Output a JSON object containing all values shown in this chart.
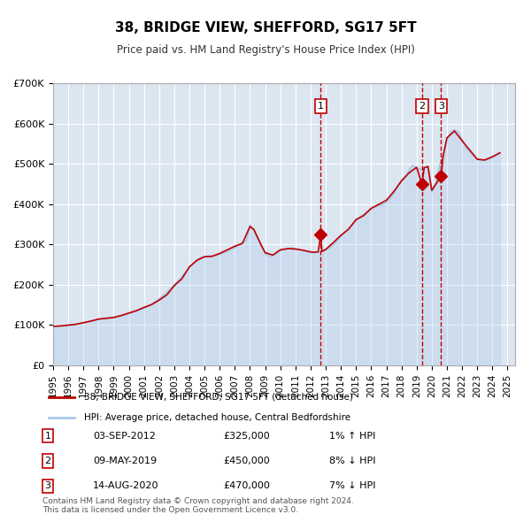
{
  "title": "38, BRIDGE VIEW, SHEFFORD, SG17 5FT",
  "subtitle": "Price paid vs. HM Land Registry's House Price Index (HPI)",
  "background_color": "#ffffff",
  "plot_bg_color": "#dce6f1",
  "grid_color": "#ffffff",
  "ylim": [
    0,
    700000
  ],
  "yticks": [
    0,
    100000,
    200000,
    300000,
    400000,
    500000,
    600000,
    700000
  ],
  "ytick_labels": [
    "£0",
    "£100K",
    "£200K",
    "£300K",
    "£400K",
    "£500K",
    "£600K",
    "£700K"
  ],
  "xlim_start": 1995.0,
  "xlim_end": 2025.5,
  "sale_color": "#c00000",
  "hpi_color": "#a8c8e8",
  "sale_label": "38, BRIDGE VIEW, SHEFFORD, SG17 5FT (detached house)",
  "hpi_label": "HPI: Average price, detached house, Central Bedfordshire",
  "transactions": [
    {
      "num": 1,
      "date": "03-SEP-2012",
      "price": 325000,
      "hpi_diff": "1% ↑ HPI",
      "year": 2012.67
    },
    {
      "num": 2,
      "date": "09-MAY-2019",
      "price": 450000,
      "hpi_diff": "8% ↓ HPI",
      "year": 2019.35
    },
    {
      "num": 3,
      "date": "14-AUG-2020",
      "price": 470000,
      "hpi_diff": "7% ↓ HPI",
      "year": 2020.62
    }
  ],
  "footnote": "Contains HM Land Registry data © Crown copyright and database right 2024.\nThis data is licensed under the Open Government Licence v3.0.",
  "hpi_data_x": [
    1995,
    1995.25,
    1995.5,
    1995.75,
    1996,
    1996.25,
    1996.5,
    1996.75,
    1997,
    1997.25,
    1997.5,
    1997.75,
    1998,
    1998.25,
    1998.5,
    1998.75,
    1999,
    1999.25,
    1999.5,
    1999.75,
    2000,
    2000.25,
    2000.5,
    2000.75,
    2001,
    2001.25,
    2001.5,
    2001.75,
    2002,
    2002.25,
    2002.5,
    2002.75,
    2003,
    2003.25,
    2003.5,
    2003.75,
    2004,
    2004.25,
    2004.5,
    2004.75,
    2005,
    2005.25,
    2005.5,
    2005.75,
    2006,
    2006.25,
    2006.5,
    2006.75,
    2007,
    2007.25,
    2007.5,
    2007.75,
    2008,
    2008.25,
    2008.5,
    2008.75,
    2009,
    2009.25,
    2009.5,
    2009.75,
    2010,
    2010.25,
    2010.5,
    2010.75,
    2011,
    2011.25,
    2011.5,
    2011.75,
    2012,
    2012.25,
    2012.5,
    2012.75,
    2013,
    2013.25,
    2013.5,
    2013.75,
    2014,
    2014.25,
    2014.5,
    2014.75,
    2015,
    2015.25,
    2015.5,
    2015.75,
    2016,
    2016.25,
    2016.5,
    2016.75,
    2017,
    2017.25,
    2017.5,
    2017.75,
    2018,
    2018.25,
    2018.5,
    2018.75,
    2019,
    2019.25,
    2019.5,
    2019.75,
    2020,
    2020.25,
    2020.5,
    2020.75,
    2021,
    2021.25,
    2021.5,
    2021.75,
    2022,
    2022.25,
    2022.5,
    2022.75,
    2023,
    2023.25,
    2023.5,
    2023.75,
    2024,
    2024.25,
    2024.5
  ],
  "hpi_data_y": [
    97000,
    97500,
    98000,
    99000,
    100000,
    101000,
    102500,
    104000,
    106000,
    108000,
    111000,
    113000,
    115000,
    116000,
    117000,
    118000,
    119000,
    121000,
    123000,
    126000,
    129000,
    132000,
    135000,
    138000,
    142000,
    147000,
    152000,
    158000,
    165000,
    173000,
    181000,
    191000,
    200000,
    210000,
    220000,
    232000,
    243000,
    253000,
    262000,
    268000,
    270000,
    271000,
    272000,
    273000,
    276000,
    280000,
    284000,
    289000,
    293000,
    299000,
    305000,
    310000,
    348000,
    335000,
    315000,
    295000,
    278000,
    271000,
    272000,
    278000,
    285000,
    288000,
    290000,
    292000,
    290000,
    288000,
    285000,
    283000,
    280000,
    281000,
    282000,
    283000,
    286000,
    292000,
    300000,
    310000,
    320000,
    330000,
    340000,
    350000,
    360000,
    368000,
    375000,
    382000,
    388000,
    393000,
    397000,
    400000,
    405000,
    415000,
    428000,
    445000,
    460000,
    470000,
    485000,
    497000,
    490000,
    488000,
    490000,
    493000,
    430000,
    450000,
    495000,
    520000,
    560000,
    580000,
    585000,
    580000,
    560000,
    540000,
    530000,
    520000,
    512000,
    510000,
    510000,
    514000,
    518000,
    522000,
    528000
  ],
  "sale_data_x": [
    1995,
    1995.5,
    1996,
    1996.5,
    1997,
    1997.5,
    1998,
    1998.5,
    1999,
    1999.5,
    2000,
    2000.5,
    2001,
    2001.5,
    2002,
    2002.5,
    2003,
    2003.5,
    2004,
    2004.5,
    2005,
    2005.5,
    2006,
    2006.5,
    2007,
    2007.5,
    2008,
    2008.25,
    2008.5,
    2008.75,
    2009,
    2009.5,
    2010,
    2010.5,
    2011,
    2011.5,
    2012,
    2012.25,
    2012.5,
    2012.67,
    2012.75,
    2013,
    2013.5,
    2014,
    2014.5,
    2015,
    2015.5,
    2016,
    2016.5,
    2017,
    2017.5,
    2018,
    2018.5,
    2019,
    2019.35,
    2019.5,
    2019.75,
    2020,
    2020.62,
    2020.75,
    2021,
    2021.5,
    2022,
    2022.5,
    2023,
    2023.5,
    2024,
    2024.5
  ],
  "sale_data_y": [
    97000,
    98000,
    100000,
    102000,
    106000,
    110000,
    115000,
    117000,
    119000,
    124000,
    130000,
    136000,
    144000,
    151000,
    162000,
    175000,
    198000,
    215000,
    245000,
    261000,
    270000,
    271000,
    278000,
    287000,
    296000,
    303000,
    345000,
    338000,
    318000,
    298000,
    280000,
    274000,
    287000,
    290000,
    289000,
    286000,
    282000,
    281000,
    282000,
    325000,
    283000,
    288000,
    305000,
    323000,
    338000,
    362000,
    372000,
    390000,
    400000,
    410000,
    432000,
    458000,
    478000,
    492000,
    450000,
    491000,
    494000,
    435000,
    470000,
    520000,
    565000,
    582000,
    558000,
    535000,
    512000,
    510000,
    518000,
    528000
  ]
}
